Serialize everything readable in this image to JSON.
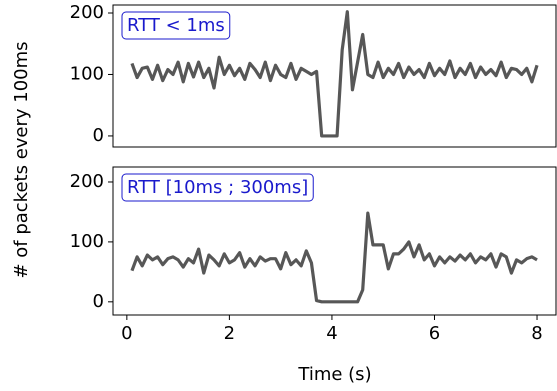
{
  "chart_data": [
    {
      "type": "line",
      "ylabel": "# of packets every 100ms",
      "annotation": "RTT < 1ms",
      "xlim": [
        -0.27,
        8.37
      ],
      "ylim": [
        -18,
        213
      ],
      "yticks": [
        0,
        100,
        200
      ],
      "x": [
        0.1,
        0.2,
        0.3,
        0.4,
        0.5,
        0.6,
        0.7,
        0.8,
        0.9,
        1.0,
        1.1,
        1.2,
        1.3,
        1.4,
        1.5,
        1.6,
        1.7,
        1.8,
        1.9,
        2.0,
        2.1,
        2.2,
        2.3,
        2.4,
        2.5,
        2.6,
        2.7,
        2.8,
        2.9,
        3.0,
        3.1,
        3.2,
        3.3,
        3.4,
        3.5,
        3.6,
        3.7,
        3.8,
        3.9,
        4.0,
        4.1,
        4.2,
        4.3,
        4.4,
        4.5,
        4.6,
        4.7,
        4.8,
        4.9,
        5.0,
        5.1,
        5.2,
        5.3,
        5.4,
        5.5,
        5.6,
        5.7,
        5.8,
        5.9,
        6.0,
        6.1,
        6.2,
        6.3,
        6.4,
        6.5,
        6.6,
        6.7,
        6.8,
        6.9,
        7.0,
        7.1,
        7.2,
        7.3,
        7.4,
        7.5,
        7.6,
        7.7,
        7.8,
        7.9,
        8.0
      ],
      "color": "#575757",
      "values": [
        118,
        95,
        110,
        112,
        92,
        115,
        90,
        108,
        100,
        120,
        88,
        118,
        96,
        120,
        95,
        110,
        78,
        128,
        100,
        115,
        98,
        110,
        92,
        118,
        108,
        95,
        120,
        90,
        115,
        100,
        95,
        118,
        92,
        110,
        105,
        100,
        105,
        0,
        0,
        0,
        0,
        140,
        202,
        75,
        120,
        165,
        100,
        95,
        120,
        95,
        110,
        100,
        118,
        95,
        112,
        100,
        108,
        95,
        118,
        98,
        110,
        100,
        122,
        95,
        110,
        100,
        118,
        95,
        112,
        100,
        108,
        98,
        120,
        95,
        110,
        108,
        100,
        110,
        88,
        115
      ]
    },
    {
      "type": "line",
      "xlabel": "Time (s)",
      "annotation": "RTT [10ms ; 300ms]",
      "xlim": [
        -0.27,
        8.37
      ],
      "xticks": [
        0,
        2,
        4,
        6,
        8
      ],
      "ylim": [
        -22,
        225
      ],
      "yticks": [
        0,
        100,
        200
      ],
      "x": [
        0.1,
        0.2,
        0.3,
        0.4,
        0.5,
        0.6,
        0.7,
        0.8,
        0.9,
        1.0,
        1.1,
        1.2,
        1.3,
        1.4,
        1.5,
        1.6,
        1.7,
        1.8,
        1.9,
        2.0,
        2.1,
        2.2,
        2.3,
        2.4,
        2.5,
        2.6,
        2.7,
        2.8,
        2.9,
        3.0,
        3.1,
        3.2,
        3.3,
        3.4,
        3.5,
        3.6,
        3.7,
        3.8,
        3.9,
        4.0,
        4.1,
        4.2,
        4.3,
        4.4,
        4.5,
        4.6,
        4.7,
        4.8,
        4.9,
        5.0,
        5.1,
        5.2,
        5.3,
        5.4,
        5.5,
        5.6,
        5.7,
        5.8,
        5.9,
        6.0,
        6.1,
        6.2,
        6.3,
        6.4,
        6.5,
        6.6,
        6.7,
        6.8,
        6.9,
        7.0,
        7.1,
        7.2,
        7.3,
        7.4,
        7.5,
        7.6,
        7.7,
        7.8,
        7.9,
        8.0
      ],
      "color": "#575757",
      "values": [
        52,
        75,
        60,
        78,
        70,
        75,
        62,
        72,
        75,
        70,
        58,
        72,
        65,
        88,
        48,
        78,
        70,
        60,
        80,
        65,
        70,
        82,
        58,
        72,
        60,
        75,
        68,
        72,
        72,
        55,
        82,
        62,
        70,
        60,
        85,
        65,
        2,
        0,
        0,
        0,
        0,
        0,
        0,
        0,
        0,
        20,
        148,
        95,
        95,
        95,
        55,
        80,
        80,
        88,
        100,
        75,
        95,
        70,
        80,
        60,
        75,
        65,
        75,
        68,
        78,
        70,
        80,
        65,
        75,
        70,
        80,
        58,
        80,
        75,
        48,
        70,
        65,
        72,
        75,
        70
      ]
    }
  ]
}
